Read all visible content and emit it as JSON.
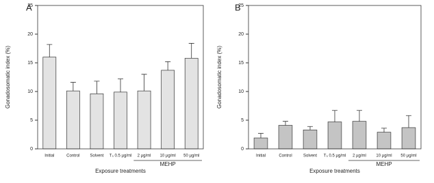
{
  "chart_data": [
    {
      "type": "bar",
      "panel_label": "A",
      "y_label": "Gonadosomatic index (%)",
      "x_label": "Exposure treatments",
      "group_label": "MEHP",
      "categories": [
        "Initial",
        "Control",
        "Solvent",
        "T₃ 0.5 µg/ml",
        "2 µg/ml",
        "10 µg/ml",
        "50 µg/ml"
      ],
      "values": [
        16.0,
        10.1,
        9.6,
        9.9,
        10.1,
        13.7,
        15.8
      ],
      "errors": [
        2.2,
        1.5,
        2.2,
        2.3,
        2.9,
        1.5,
        2.6
      ],
      "color": "#e3e3e3",
      "ylim": [
        0,
        25
      ],
      "yticks": [
        0,
        5,
        10,
        15,
        20,
        25
      ]
    },
    {
      "type": "bar",
      "panel_label": "B",
      "y_label": "Gonadosomatic index (%)",
      "x_label": "Exposure treatments",
      "group_label": "MEHP",
      "categories": [
        "Initial",
        "Control",
        "Solvent",
        "T₃ 0.5 µg/ml",
        "2 µg/ml",
        "10 µg/ml",
        "50 µg/ml"
      ],
      "values": [
        1.9,
        4.1,
        3.3,
        4.7,
        4.8,
        2.9,
        3.7
      ],
      "errors": [
        0.8,
        0.7,
        0.6,
        2.0,
        1.9,
        0.7,
        2.1
      ],
      "color": "#c4c4c4",
      "ylim": [
        0,
        25
      ],
      "yticks": [
        0,
        5,
        10,
        15,
        20,
        25
      ]
    }
  ]
}
